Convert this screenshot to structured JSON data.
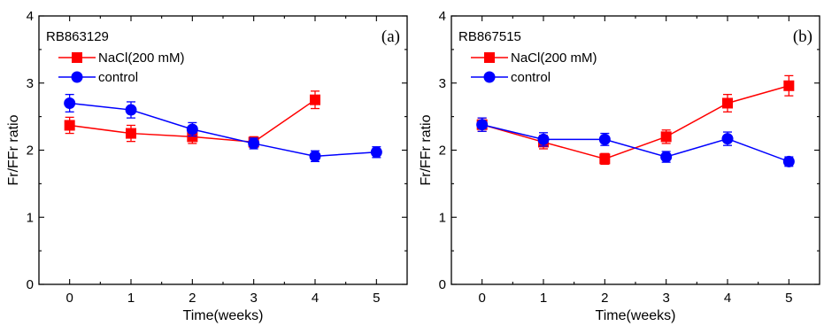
{
  "colors": {
    "nacl": "#ff0000",
    "control": "#0000ff",
    "axis": "#000000"
  },
  "chart_data": [
    {
      "type": "line",
      "panel_label": "(a)",
      "sample": "RB863129",
      "xlabel": "Time(weeks)",
      "ylabel": "Fr/FFr ratio",
      "xlim": [
        -0.5,
        5.5
      ],
      "ylim": [
        0,
        4
      ],
      "x_ticks": [
        "0",
        "1",
        "2",
        "3",
        "4",
        "5"
      ],
      "y_ticks": [
        "0",
        "1",
        "2",
        "3",
        "4"
      ],
      "legend_position": "top-left",
      "series": [
        {
          "name": "NaCl(200 mM)",
          "color": "#ff0000",
          "marker": "square",
          "x": [
            0,
            1,
            2,
            3,
            4
          ],
          "y": [
            2.37,
            2.25,
            2.2,
            2.12,
            2.75
          ],
          "err": [
            0.12,
            0.12,
            0.1,
            0.08,
            0.13
          ]
        },
        {
          "name": "control",
          "color": "#0000ff",
          "marker": "circle",
          "x": [
            0,
            1,
            2,
            3,
            4,
            5
          ],
          "y": [
            2.7,
            2.6,
            2.31,
            2.1,
            1.91,
            1.97
          ],
          "err": [
            0.13,
            0.12,
            0.1,
            0.08,
            0.08,
            0.08
          ]
        }
      ]
    },
    {
      "type": "line",
      "panel_label": "(b)",
      "sample": "RB867515",
      "xlabel": "Time(weeks)",
      "ylabel": "Fr/FFr ratio",
      "xlim": [
        -0.5,
        5.5
      ],
      "ylim": [
        0,
        4
      ],
      "x_ticks": [
        "0",
        "1",
        "2",
        "3",
        "4",
        "5"
      ],
      "y_ticks": [
        "0",
        "1",
        "2",
        "3",
        "4"
      ],
      "legend_position": "top-left",
      "series": [
        {
          "name": "NaCl(200 mM)",
          "color": "#ff0000",
          "marker": "square",
          "x": [
            0,
            1,
            2,
            3,
            4,
            5
          ],
          "y": [
            2.38,
            2.12,
            1.87,
            2.2,
            2.7,
            2.96
          ],
          "err": [
            0.1,
            0.1,
            0.08,
            0.1,
            0.13,
            0.15
          ]
        },
        {
          "name": "control",
          "color": "#0000ff",
          "marker": "circle",
          "x": [
            0,
            1,
            2,
            3,
            4,
            5
          ],
          "y": [
            2.38,
            2.16,
            2.16,
            1.9,
            2.17,
            1.83
          ],
          "err": [
            0.1,
            0.1,
            0.09,
            0.08,
            0.1,
            0.07
          ]
        }
      ]
    }
  ]
}
